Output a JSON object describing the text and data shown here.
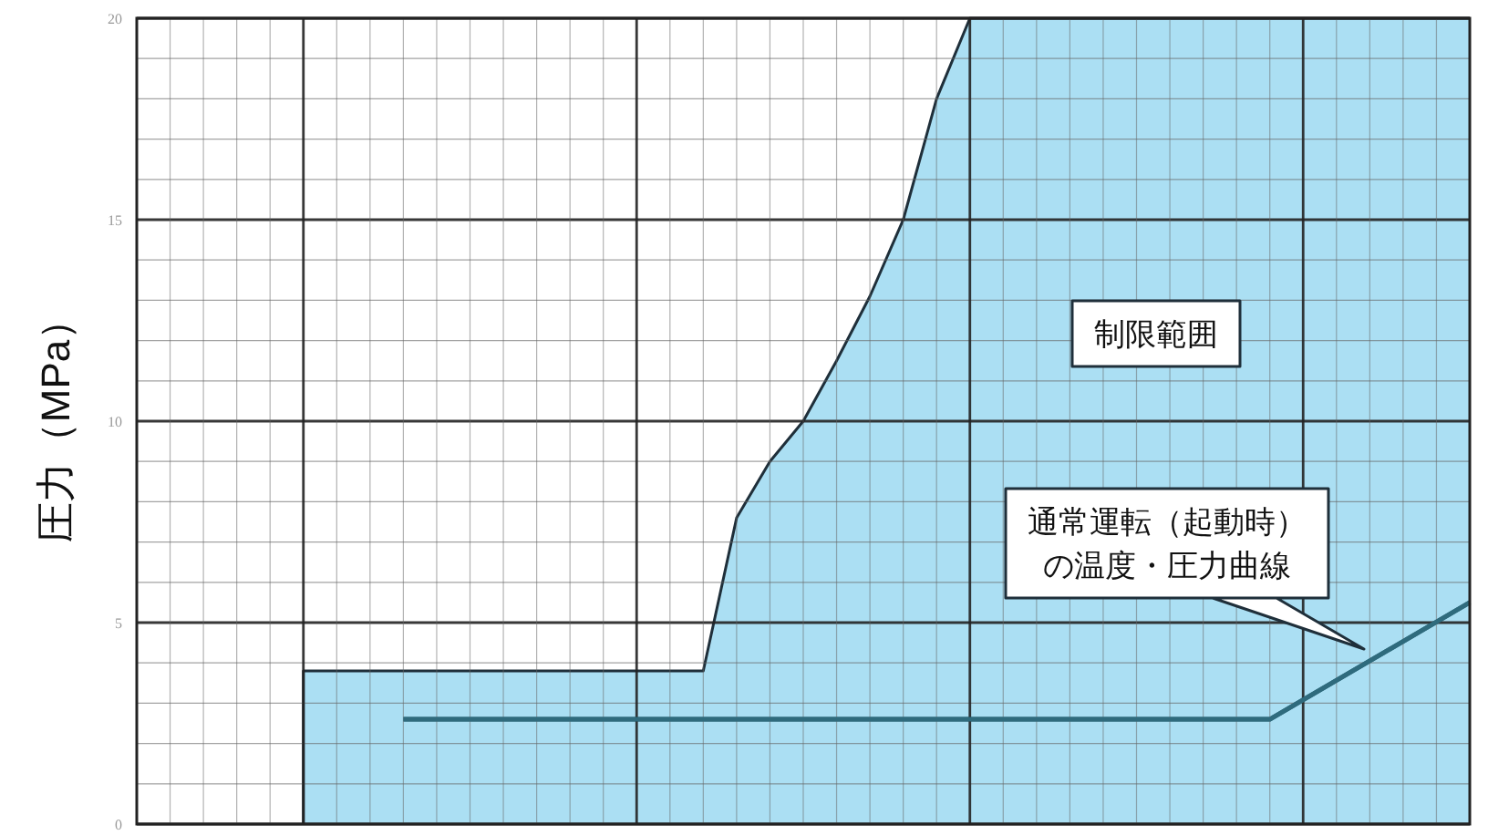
{
  "chart_data": {
    "type": "area",
    "ylabel": "圧力（MPa）",
    "categories": [
      null,
      null,
      null,
      null,
      null,
      null,
      null,
      null,
      null,
      null,
      null,
      null,
      null,
      null,
      null,
      null,
      null,
      null,
      null,
      null,
      null,
      null,
      null,
      null,
      null,
      null,
      null,
      null,
      null,
      null,
      null,
      null,
      null,
      null,
      null,
      null,
      null,
      null,
      null,
      null,
      null
    ],
    "series": [
      {
        "color": "#abdff3",
        "values": [
          null,
          null,
          null,
          null,
          null,
          3.8,
          3.8,
          3.8,
          3.8,
          3.8,
          3.8,
          3.8,
          3.8,
          3.8,
          3.8,
          3.8,
          3.8,
          3.8,
          7.6,
          9.0,
          10.0,
          11.5,
          13.1,
          15.0,
          18.0,
          20,
          20,
          20,
          20,
          20,
          20,
          20,
          20,
          20,
          20,
          20,
          20,
          20,
          20,
          20,
          20
        ]
      },
      {
        "type": "line",
        "color": "#2f6b7d",
        "values": [
          null,
          null,
          null,
          null,
          null,
          null,
          null,
          null,
          2.6,
          2.6,
          2.6,
          2.6,
          2.6,
          2.6,
          2.6,
          2.6,
          2.6,
          2.6,
          2.6,
          2.6,
          2.6,
          2.6,
          2.6,
          2.6,
          2.6,
          2.6,
          2.6,
          2.6,
          2.6,
          2.6,
          2.6,
          2.6,
          2.6,
          2.6,
          2.6,
          null,
          null,
          null,
          null,
          null,
          5.5
        ]
      }
    ],
    "ylim": [
      0,
      20
    ],
    "yticks": [
      0,
      {
        "value": 1,
        "label": null
      },
      {
        "value": 2,
        "label": null
      },
      {
        "value": 3,
        "label": null
      },
      {
        "value": 4,
        "label": null
      },
      5,
      {
        "value": 6,
        "label": null
      },
      {
        "value": 7,
        "label": null
      },
      {
        "value": 8,
        "label": null
      },
      {
        "value": 9,
        "label": null
      },
      10,
      {
        "value": 11,
        "label": null
      },
      {
        "value": 12,
        "label": null
      },
      {
        "value": 13,
        "label": null
      },
      {
        "value": 14,
        "label": null
      },
      15,
      {
        "value": 16,
        "label": null
      },
      {
        "value": 17,
        "label": null
      },
      {
        "value": 18,
        "label": null
      },
      {
        "value": 19,
        "label": null
      },
      20
    ],
    "grid": true,
    "annotations": [
      "制限範囲",
      "通常運転（起動時）",
      "の温度・圧力曲線"
    ]
  }
}
